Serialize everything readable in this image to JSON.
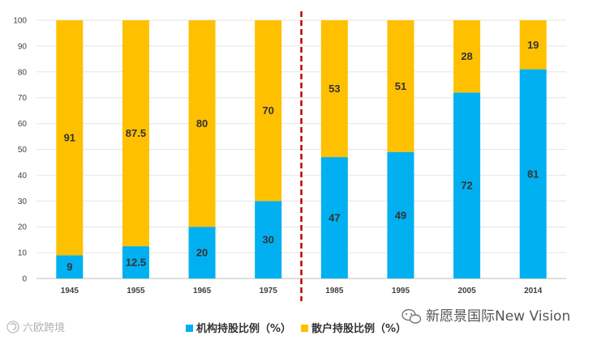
{
  "chart_data": {
    "type": "bar",
    "stacked": true,
    "categories": [
      "1945",
      "1955",
      "1965",
      "1975",
      "1985",
      "1995",
      "2005",
      "2014"
    ],
    "series": [
      {
        "name": "机构持股比例（%）",
        "color": "#00B0F0",
        "values": [
          9,
          12.5,
          20,
          30,
          47,
          49,
          72,
          81
        ],
        "labels": [
          "9",
          "12.5",
          "20",
          "30",
          "47",
          "49",
          "72",
          "81"
        ]
      },
      {
        "name": "散户持股比例（%）",
        "color": "#FFC000",
        "values": [
          91,
          87.5,
          80,
          70,
          53,
          51,
          28,
          19
        ],
        "labels": [
          "91",
          "87.5",
          "80",
          "70",
          "53",
          "51",
          "28",
          "19"
        ]
      }
    ],
    "yticks": [
      "0",
      "10",
      "20",
      "30",
      "40",
      "50",
      "60",
      "70",
      "80",
      "90",
      "100"
    ],
    "ylim": [
      0,
      100
    ],
    "divider": {
      "after_category": "1975",
      "color": "#C00000",
      "style": "dashed"
    },
    "legend_position": "bottom"
  },
  "watermarks": {
    "right": "新愿景国际New Vision",
    "left": "六欧跨境"
  }
}
